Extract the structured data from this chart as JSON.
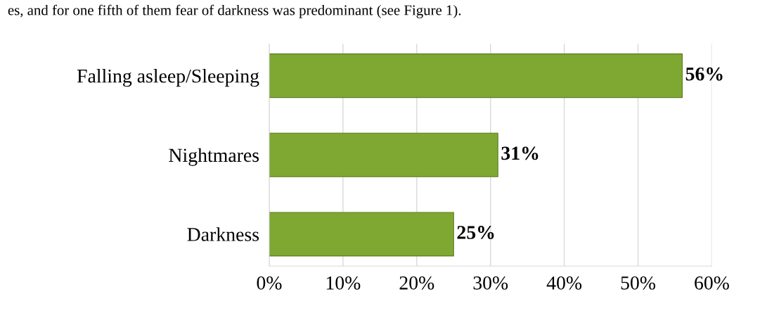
{
  "chart_data": {
    "type": "bar",
    "orientation": "horizontal",
    "categories": [
      "Falling asleep/Sleeping",
      "Nightmares",
      "Darkness"
    ],
    "values": [
      56,
      31,
      25
    ],
    "value_labels": [
      "56%",
      "31%",
      "25%"
    ],
    "color": "#7fa832",
    "xlim": [
      0,
      60
    ],
    "xticks": [
      {
        "value": 0,
        "label": "0%"
      },
      {
        "value": 10,
        "label": "10%"
      },
      {
        "value": 20,
        "label": "20%"
      },
      {
        "value": 30,
        "label": "30%"
      },
      {
        "value": 40,
        "label": "40%"
      },
      {
        "value": 50,
        "label": "50%"
      },
      {
        "value": 60,
        "label": "60%"
      }
    ],
    "grid": "x",
    "annotations": [
      "es, and for one fifth of them fear of darkness was predominant (see Figure 1)."
    ]
  }
}
